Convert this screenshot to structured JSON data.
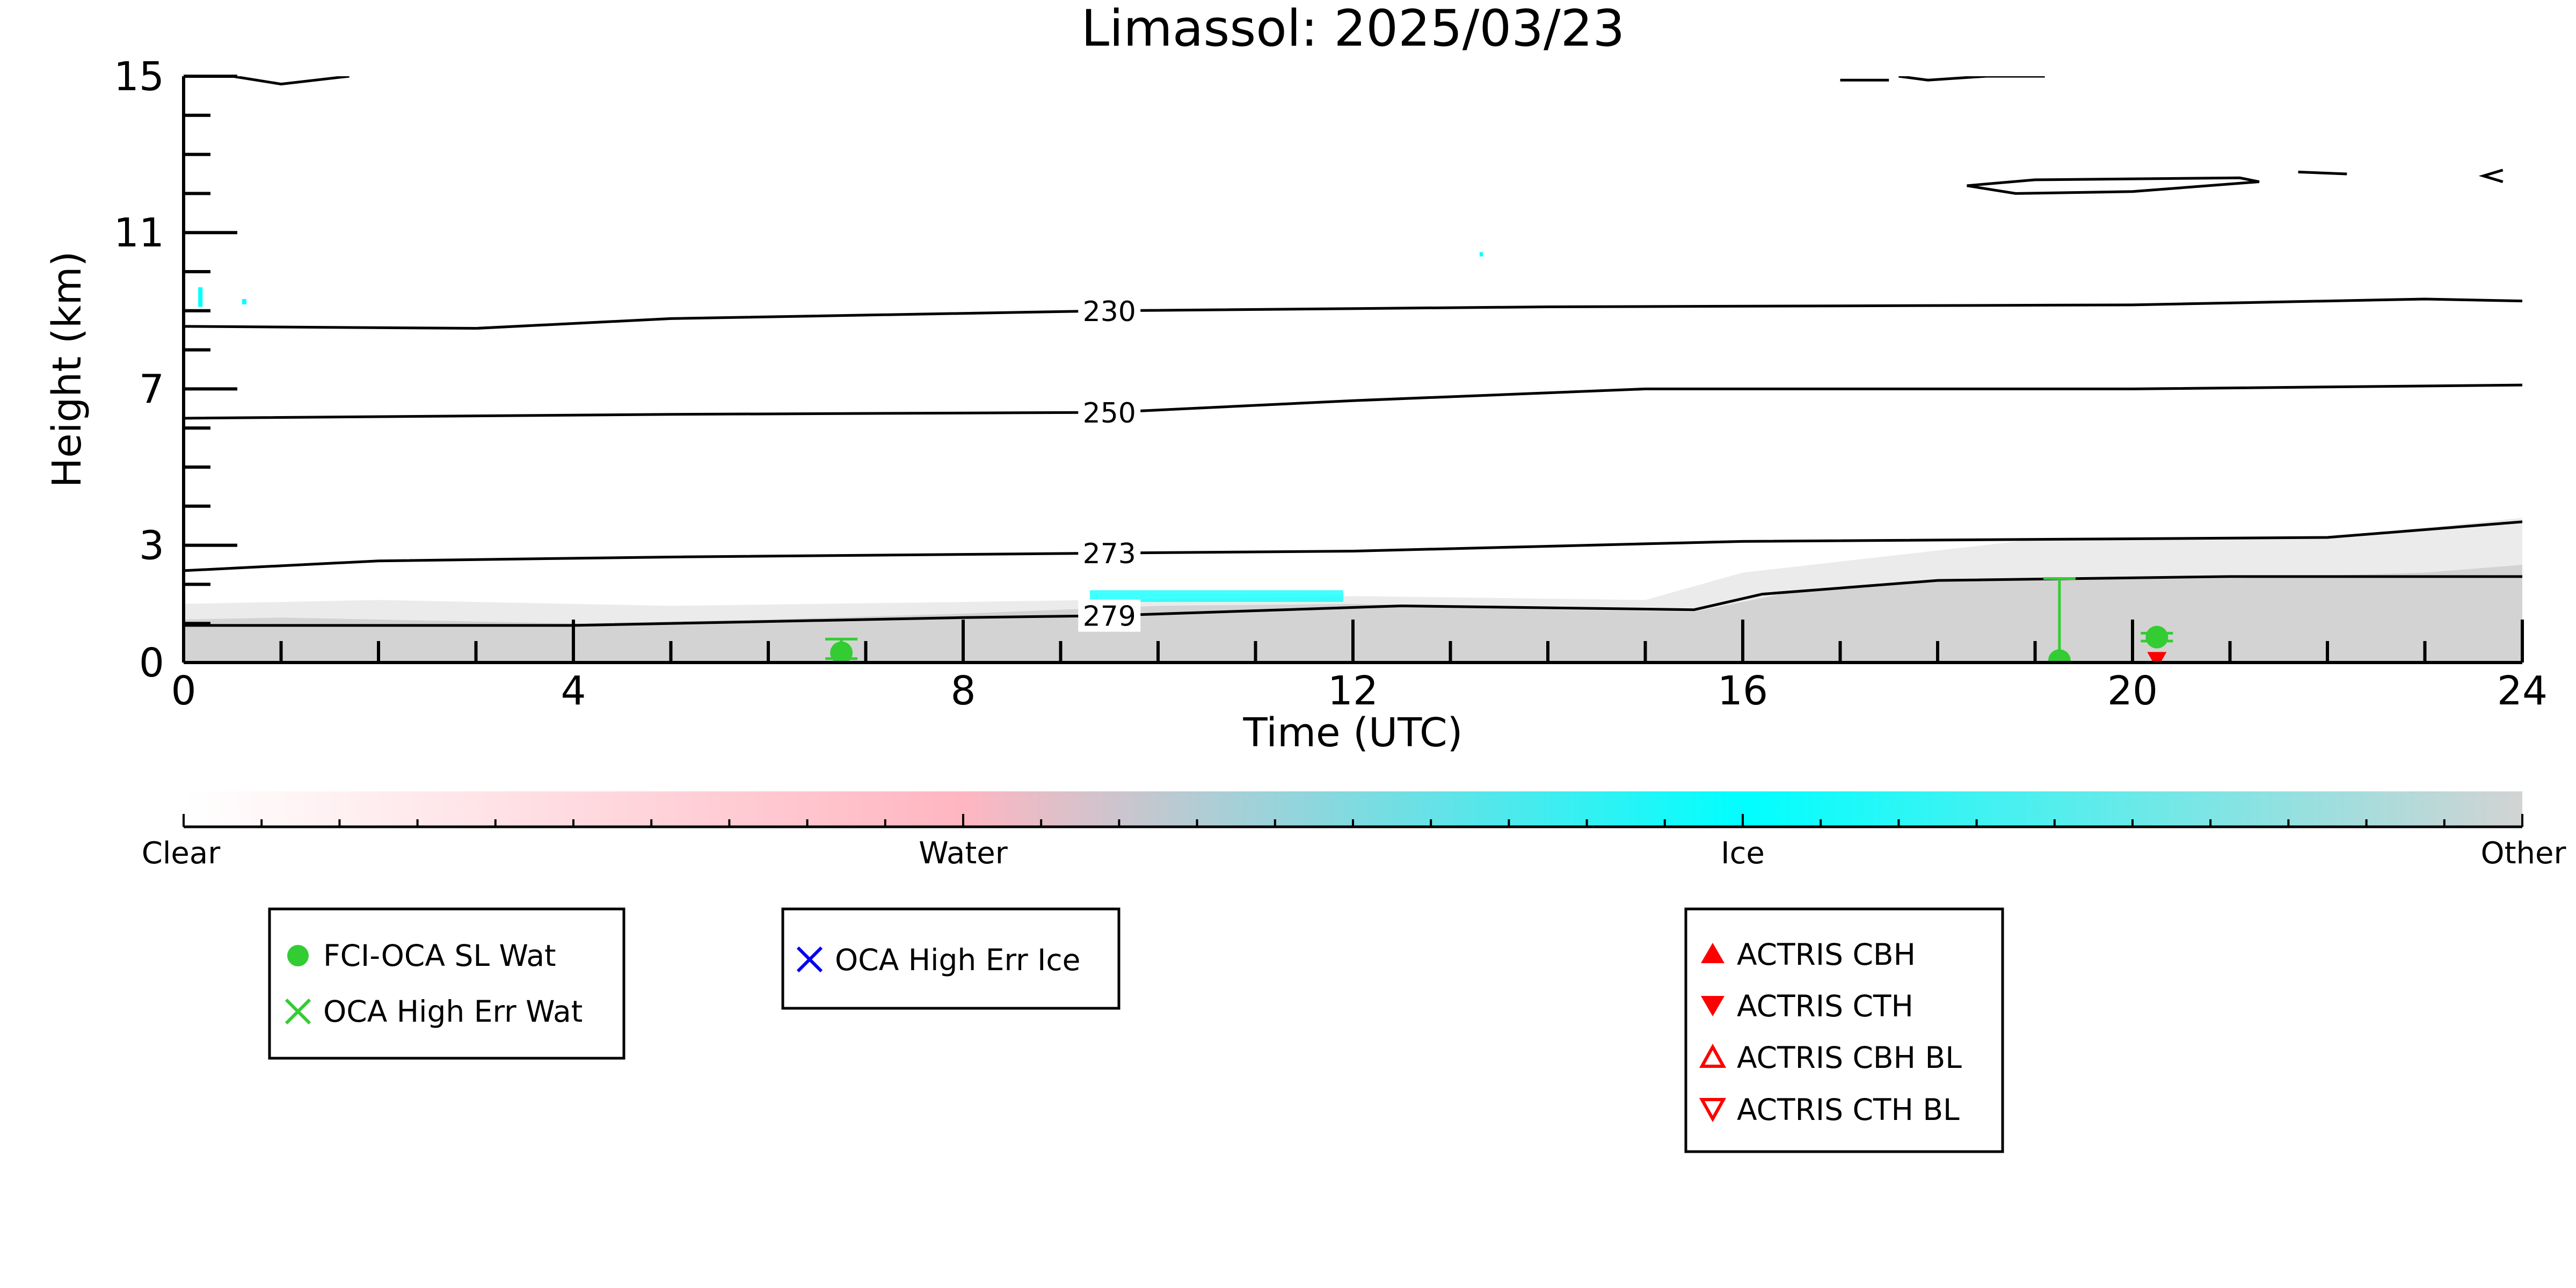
{
  "chart_data": {
    "type": "line",
    "title": "Limassol: 2025/03/23",
    "xlabel": "Time (UTC)",
    "ylabel": "Height (km)",
    "xlim": [
      0,
      24
    ],
    "ylim": [
      0,
      15
    ],
    "x_ticks": [
      0,
      4,
      8,
      12,
      16,
      20,
      24
    ],
    "y_ticks": [
      0,
      3,
      7,
      11,
      15
    ],
    "grid": false,
    "colors": {
      "clear": "#ffffff",
      "water": "#ffb6c1",
      "ice": "#00ffff",
      "other": "#d3d3d3",
      "oca_water": "#33cc33",
      "oca_ice": "#0000ee",
      "actris": "#ff0000",
      "contour": "#000000"
    },
    "isotherms": [
      {
        "label": "230",
        "label_x": 9.5,
        "points": [
          [
            0,
            8.6
          ],
          [
            3,
            8.55
          ],
          [
            5,
            8.8
          ],
          [
            9.5,
            9.0
          ],
          [
            14,
            9.1
          ],
          [
            20,
            9.15
          ],
          [
            23,
            9.3
          ],
          [
            24,
            9.25
          ]
        ]
      },
      {
        "label": "250",
        "label_x": 9.5,
        "points": [
          [
            0,
            6.25
          ],
          [
            5,
            6.35
          ],
          [
            9.5,
            6.4
          ],
          [
            12,
            6.7
          ],
          [
            15,
            7.0
          ],
          [
            20,
            7.0
          ],
          [
            24,
            7.1
          ]
        ]
      },
      {
        "label": "273",
        "label_x": 9.5,
        "points": [
          [
            0,
            2.35
          ],
          [
            2,
            2.6
          ],
          [
            5,
            2.7
          ],
          [
            9.5,
            2.8
          ],
          [
            12,
            2.85
          ],
          [
            16,
            3.1
          ],
          [
            22,
            3.2
          ],
          [
            24,
            3.6
          ]
        ]
      },
      {
        "label": "279",
        "label_x": 9.5,
        "points": [
          [
            0,
            0.95
          ],
          [
            4,
            0.95
          ],
          [
            8,
            1.15
          ],
          [
            9.5,
            1.2
          ],
          [
            12.5,
            1.45
          ],
          [
            15.5,
            1.35
          ],
          [
            16.2,
            1.75
          ],
          [
            18,
            2.1
          ],
          [
            21,
            2.2
          ],
          [
            24,
            2.2
          ]
        ]
      }
    ],
    "upper_contours": [
      {
        "points": [
          [
            0.5,
            15.0
          ],
          [
            1.0,
            14.8
          ],
          [
            1.7,
            15.0
          ]
        ]
      },
      {
        "points": [
          [
            17.0,
            14.9
          ],
          [
            17.5,
            14.9
          ]
        ]
      },
      {
        "points": [
          [
            17.6,
            15.0
          ],
          [
            17.9,
            14.9
          ],
          [
            18.5,
            15.0
          ],
          [
            19.1,
            15.0
          ]
        ]
      },
      {
        "points": [
          [
            18.3,
            12.2
          ],
          [
            19.0,
            12.35
          ],
          [
            21.1,
            12.4
          ],
          [
            21.3,
            12.3
          ],
          [
            20.0,
            12.05
          ],
          [
            18.8,
            12.0
          ],
          [
            18.3,
            12.2
          ]
        ]
      },
      {
        "points": [
          [
            21.7,
            12.55
          ],
          [
            22.2,
            12.5
          ]
        ]
      },
      {
        "points": [
          [
            23.8,
            12.3
          ],
          [
            23.6,
            12.45
          ],
          [
            23.8,
            12.6
          ]
        ]
      }
    ],
    "oca_water_points": [
      {
        "x": 6.75,
        "y": 0.25,
        "err_low": 0.1,
        "err_high": 0.6
      },
      {
        "x": 19.25,
        "y": 0.05,
        "err_low": 0.0,
        "err_high": 2.15
      },
      {
        "x": 20.25,
        "y": 0.65,
        "err_low": 0.55,
        "err_high": 0.75
      }
    ],
    "actris_cth_points": [
      {
        "x": 20.25,
        "y": 0.05
      }
    ],
    "colorbar": {
      "labels": [
        "Clear",
        "Water",
        "Ice",
        "Other"
      ]
    },
    "legends": [
      {
        "entries": [
          {
            "label": "FCI-OCA SL Wat",
            "marker": "circle",
            "color": "#33cc33"
          },
          {
            "label": "OCA High Err Wat",
            "marker": "x",
            "color": "#33cc33"
          }
        ]
      },
      {
        "entries": [
          {
            "label": "OCA High Err Ice",
            "marker": "x",
            "color": "#0000ee"
          }
        ]
      },
      {
        "entries": [
          {
            "label": "ACTRIS CBH",
            "marker": "triangle-up",
            "color": "#ff0000"
          },
          {
            "label": "ACTRIS CTH",
            "marker": "triangle-down",
            "color": "#ff0000"
          },
          {
            "label": "ACTRIS CBH BL",
            "marker": "triangle-up-open",
            "color": "#ff0000"
          },
          {
            "label": "ACTRIS CTH BL",
            "marker": "triangle-down-open",
            "color": "#ff0000"
          }
        ]
      }
    ]
  }
}
